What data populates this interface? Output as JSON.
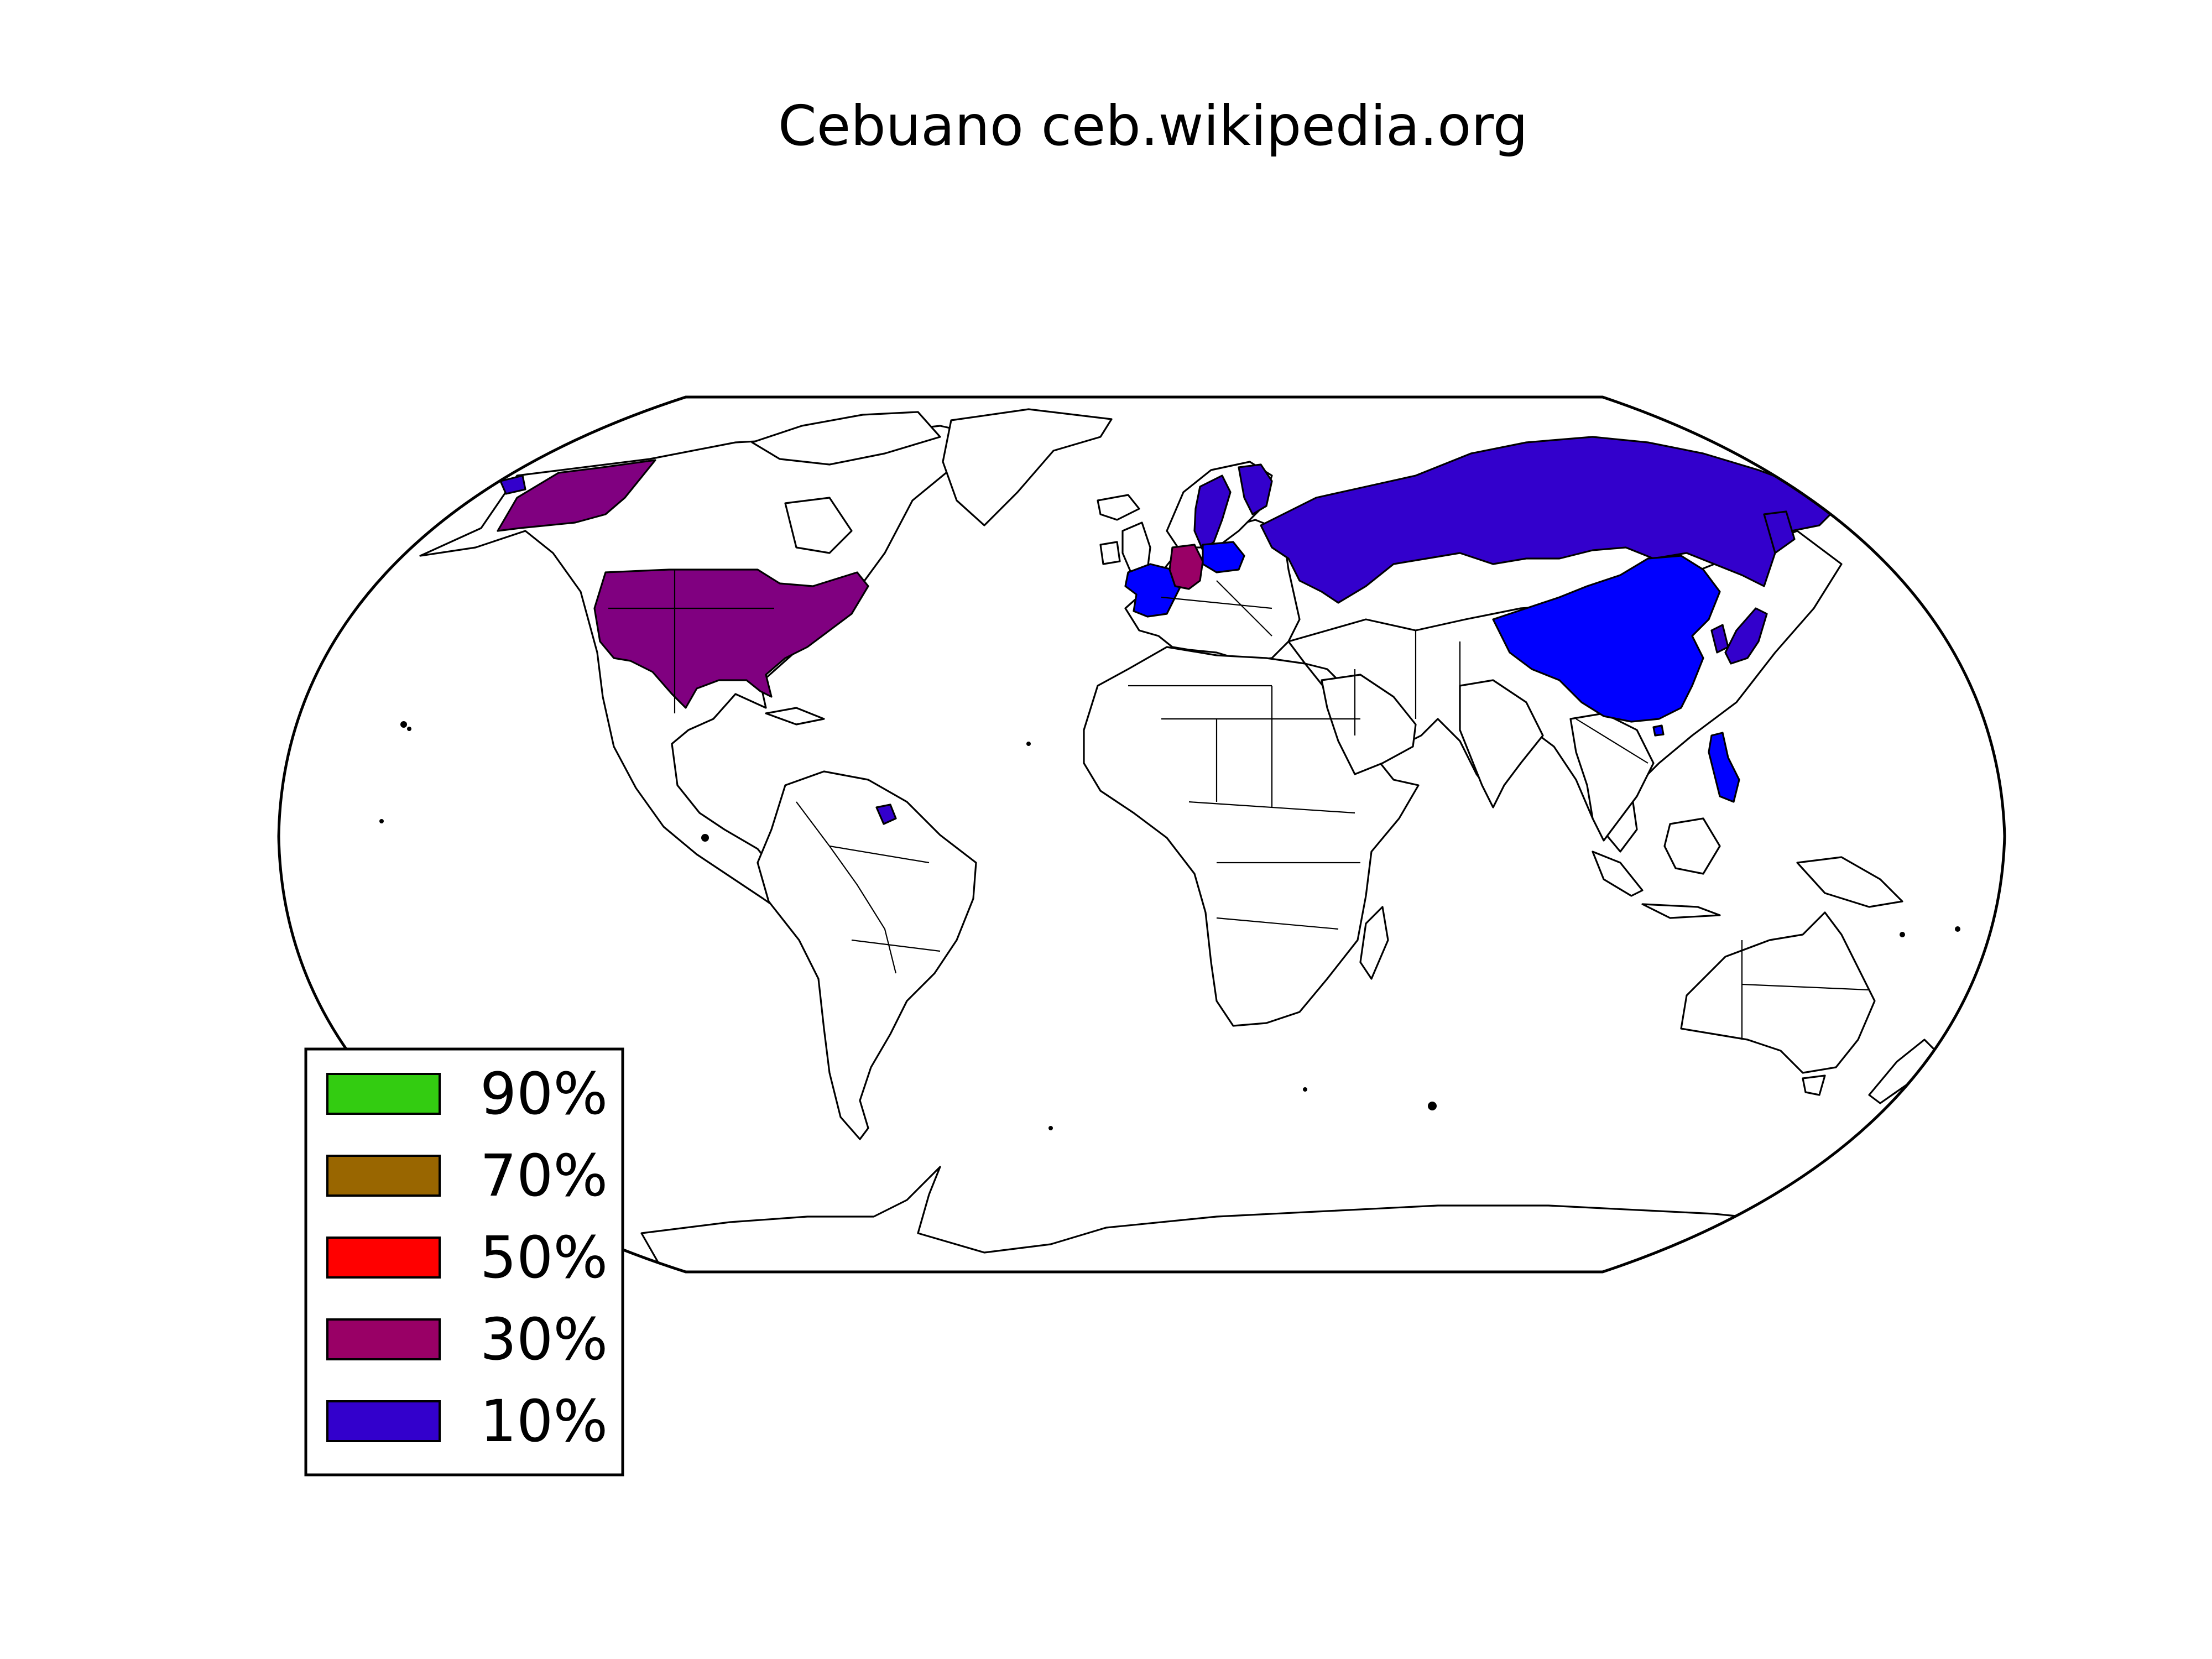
{
  "title": "Cebuano ceb.wikipedia.org",
  "legend": {
    "items": [
      {
        "label": "90%",
        "color": "#33cc11"
      },
      {
        "label": "70%",
        "color": "#996600"
      },
      {
        "label": "50%",
        "color": "#ff0000"
      },
      {
        "label": "30%",
        "color": "#990066"
      },
      {
        "label": "10%",
        "color": "#3300cc"
      }
    ]
  },
  "region_colors": {
    "bright_blue": "#0000ff",
    "purple_30": "#800080",
    "blue_10": "#3300cc",
    "land": "#ffffff",
    "outline": "#000000"
  }
}
